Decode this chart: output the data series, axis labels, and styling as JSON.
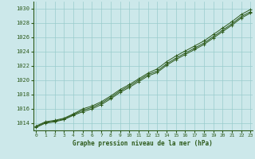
{
  "title": "Graphe pression niveau de la mer (hPa)",
  "x_ticks": [
    0,
    1,
    2,
    3,
    4,
    5,
    6,
    7,
    8,
    9,
    10,
    11,
    12,
    13,
    14,
    15,
    16,
    17,
    18,
    19,
    20,
    21,
    22,
    23
  ],
  "xlim": [
    -0.3,
    23.2
  ],
  "ylim": [
    1013.0,
    1031.0
  ],
  "y_ticks": [
    1014,
    1016,
    1018,
    1020,
    1022,
    1024,
    1026,
    1028,
    1030
  ],
  "background_color": "#cce8ea",
  "grid_color": "#99cccc",
  "line_color": "#2d5a1b",
  "marker": "+",
  "line_mean": [
    1013.5,
    1014.1,
    1014.3,
    1014.6,
    1015.2,
    1015.8,
    1016.2,
    1016.8,
    1017.6,
    1018.5,
    1019.2,
    1020.0,
    1020.8,
    1021.3,
    1022.3,
    1023.1,
    1023.8,
    1024.5,
    1025.2,
    1026.1,
    1027.0,
    1027.9,
    1028.9,
    1029.6
  ],
  "line_low": [
    1013.4,
    1014.0,
    1014.2,
    1014.5,
    1015.1,
    1015.6,
    1016.0,
    1016.6,
    1017.4,
    1018.3,
    1019.0,
    1019.8,
    1020.6,
    1021.1,
    1022.1,
    1022.9,
    1023.6,
    1024.3,
    1025.0,
    1025.9,
    1026.8,
    1027.7,
    1028.7,
    1029.4
  ],
  "line_high": [
    1013.6,
    1014.2,
    1014.4,
    1014.7,
    1015.3,
    1016.0,
    1016.4,
    1017.0,
    1017.8,
    1018.7,
    1019.4,
    1020.2,
    1021.0,
    1021.6,
    1022.6,
    1023.4,
    1024.1,
    1024.8,
    1025.5,
    1026.4,
    1027.3,
    1028.2,
    1029.2,
    1029.9
  ]
}
